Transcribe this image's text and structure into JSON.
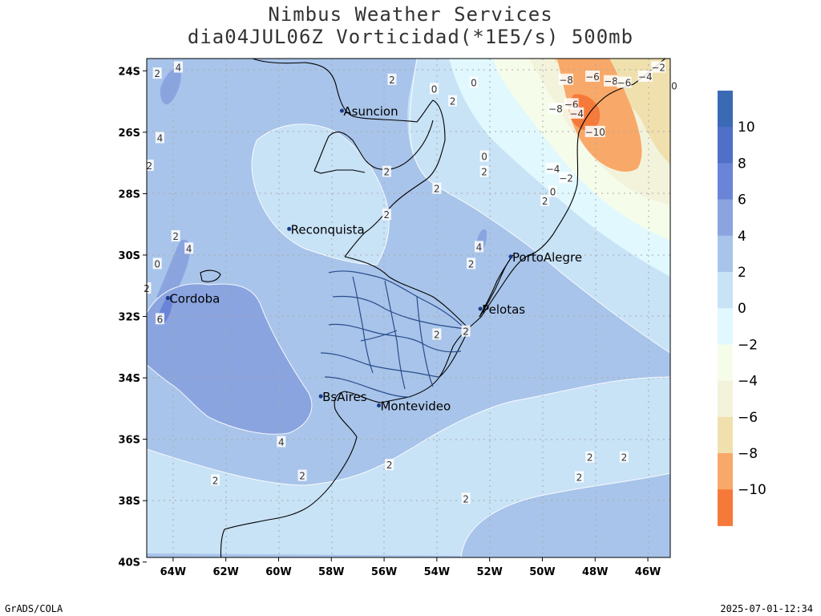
{
  "title_line1": "Nimbus Weather Services",
  "title_line2": "dia04JUL06Z Vorticidad(*1E5/s) 500mb",
  "footer_left": "GrADS/COLA",
  "footer_right": "2025-07-01-12:34",
  "lat_labels": [
    "24S",
    "26S",
    "28S",
    "30S",
    "32S",
    "34S",
    "36S",
    "38S",
    "40S"
  ],
  "lon_labels": [
    "64W",
    "62W",
    "60W",
    "58W",
    "56W",
    "54W",
    "52W",
    "50W",
    "48W",
    "46W"
  ],
  "cities": [
    {
      "name": "Asuncion",
      "lon": -57.6,
      "lat": -25.3
    },
    {
      "name": "Reconquista",
      "lon": -59.6,
      "lat": -29.15
    },
    {
      "name": "Cordoba",
      "lon": -64.2,
      "lat": -31.4
    },
    {
      "name": "PortoAlegre",
      "lon": -51.2,
      "lat": -30.05
    },
    {
      "name": "Pelotas",
      "lon": -52.35,
      "lat": -31.75
    },
    {
      "name": "BsAires",
      "lon": -58.4,
      "lat": -34.6
    },
    {
      "name": "Montevideo",
      "lon": -56.2,
      "lat": -34.9
    }
  ],
  "colorbar": {
    "levels": [
      "10",
      "8",
      "6",
      "4",
      "2",
      "0",
      "−2",
      "−4",
      "−6",
      "−8",
      "−10"
    ],
    "colors": [
      "#3b6ab4",
      "#4f6fc9",
      "#6a84d8",
      "#8aa4e0",
      "#a8c4ea",
      "#c8e2f6",
      "#e0f8fe",
      "#f6fcea",
      "#f3f3dc",
      "#efe0ae",
      "#f8a868",
      "#f57a3a"
    ]
  },
  "contour_labels": [
    {
      "t": "4",
      "lon": -63.8,
      "lat": -23.9
    },
    {
      "t": "2",
      "lon": -64.6,
      "lat": -24.1
    },
    {
      "t": "2",
      "lon": -55.7,
      "lat": -24.3
    },
    {
      "t": "0",
      "lon": -54.1,
      "lat": -24.6
    },
    {
      "t": "0",
      "lon": -52.6,
      "lat": -24.4
    },
    {
      "t": "2",
      "lon": -53.4,
      "lat": -25.0
    },
    {
      "t": "4",
      "lon": -64.5,
      "lat": -26.2
    },
    {
      "t": "2",
      "lon": -64.9,
      "lat": -27.1
    },
    {
      "t": "0",
      "lon": -52.2,
      "lat": -26.8
    },
    {
      "t": "2",
      "lon": -55.9,
      "lat": -27.3
    },
    {
      "t": "2",
      "lon": -52.2,
      "lat": -27.3
    },
    {
      "t": "2",
      "lon": -54.0,
      "lat": -27.85
    },
    {
      "t": "2",
      "lon": -55.9,
      "lat": -28.7
    },
    {
      "t": "2",
      "lon": -63.9,
      "lat": -29.4
    },
    {
      "t": "4",
      "lon": -63.4,
      "lat": -29.8
    },
    {
      "t": "0",
      "lon": -64.6,
      "lat": -30.3
    },
    {
      "t": "2",
      "lon": -65.0,
      "lat": -31.1
    },
    {
      "t": "6",
      "lon": -64.5,
      "lat": -32.1
    },
    {
      "t": "4",
      "lon": -52.4,
      "lat": -29.75
    },
    {
      "t": "2",
      "lon": -52.7,
      "lat": -30.3
    },
    {
      "t": "2",
      "lon": -54.0,
      "lat": -32.6
    },
    {
      "t": "2",
      "lon": -52.9,
      "lat": -32.5
    },
    {
      "t": "4",
      "lon": -59.9,
      "lat": -36.1
    },
    {
      "t": "2",
      "lon": -55.8,
      "lat": -36.85
    },
    {
      "t": "2",
      "lon": -59.1,
      "lat": -37.2
    },
    {
      "t": "2",
      "lon": -62.4,
      "lat": -37.35
    },
    {
      "t": "2",
      "lon": -48.2,
      "lat": -36.6
    },
    {
      "t": "2",
      "lon": -46.9,
      "lat": -36.6
    },
    {
      "t": "2",
      "lon": -48.6,
      "lat": -37.25
    },
    {
      "t": "2",
      "lon": -52.9,
      "lat": -37.95
    },
    {
      "t": "−8",
      "lon": -49.1,
      "lat": -24.3
    },
    {
      "t": "−6",
      "lon": -48.1,
      "lat": -24.2
    },
    {
      "t": "−8",
      "lon": -47.4,
      "lat": -24.35
    },
    {
      "t": "−6",
      "lon": -46.9,
      "lat": -24.4
    },
    {
      "t": "−4",
      "lon": -46.1,
      "lat": -24.2
    },
    {
      "t": "−2",
      "lon": -45.6,
      "lat": -23.9
    },
    {
      "t": "0",
      "lon": -45.0,
      "lat": -24.5
    },
    {
      "t": "−8",
      "lon": -49.5,
      "lat": -25.25
    },
    {
      "t": "−6",
      "lon": -48.9,
      "lat": -25.1
    },
    {
      "t": "−4",
      "lon": -48.7,
      "lat": -25.4
    },
    {
      "t": "−10",
      "lon": -48.0,
      "lat": -26.0
    },
    {
      "t": "−4",
      "lon": -49.6,
      "lat": -27.2
    },
    {
      "t": "−2",
      "lon": -49.1,
      "lat": -27.5
    },
    {
      "t": "0",
      "lon": -49.6,
      "lat": -27.95
    },
    {
      "t": "2",
      "lon": -49.9,
      "lat": -28.25
    }
  ]
}
